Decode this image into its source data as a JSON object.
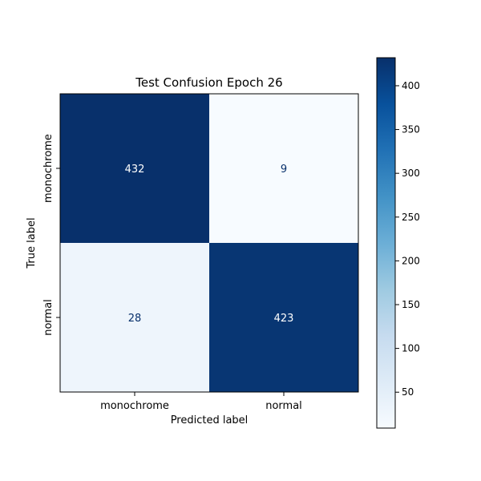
{
  "chart_data": {
    "type": "heatmap",
    "title": "Test Confusion Epoch 26",
    "xlabel": "Predicted label",
    "ylabel": "True label",
    "x_categories": [
      "monochrome",
      "normal"
    ],
    "y_categories": [
      "monochrome",
      "normal"
    ],
    "matrix": [
      [
        432,
        9
      ],
      [
        28,
        423
      ]
    ],
    "colormap": "Blues",
    "colorbar": {
      "min": 9,
      "max": 432,
      "ticks": [
        50,
        100,
        150,
        200,
        250,
        300,
        350,
        400
      ]
    },
    "colors": {
      "low": "#f7fbff",
      "high": "#08306b",
      "text_on_dark": "#ffffff",
      "text_on_light": "#08306b"
    }
  }
}
